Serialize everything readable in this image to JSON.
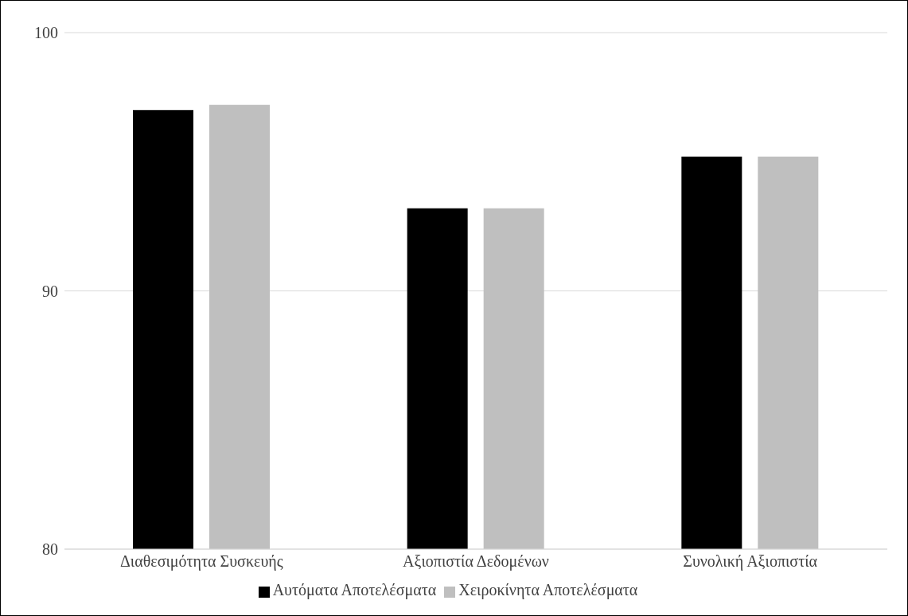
{
  "chart_data": {
    "type": "bar",
    "categories": [
      "Διαθεσιμότητα Συσκευής",
      "Αξιοπιστία Δεδομένων",
      "Συνολική Αξιοπιστία"
    ],
    "series": [
      {
        "name": "Αυτόματα Αποτελέσματα",
        "color": "#000000",
        "values": [
          97.0,
          93.2,
          95.2
        ]
      },
      {
        "name": "Χειροκίνητα Αποτελέσματα",
        "color": "#bfbfbf",
        "values": [
          97.2,
          93.2,
          95.2
        ]
      }
    ],
    "ylim": [
      80,
      100
    ],
    "yticks": [
      80,
      90,
      100
    ],
    "grid": "y",
    "legend": "bottom"
  }
}
